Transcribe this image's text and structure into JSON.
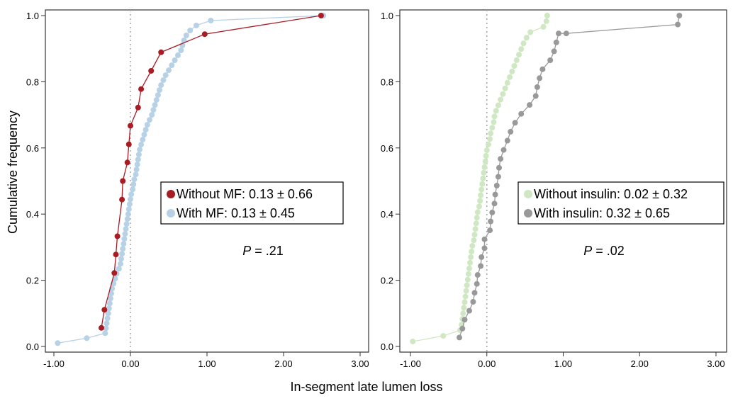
{
  "figure": {
    "ylabel": "Cumulative frequency",
    "xlabel": "In-segment late lumen loss"
  },
  "chart_data": [
    {
      "type": "line",
      "panel": "left",
      "xlim": [
        -1.0,
        3.0
      ],
      "ylim": [
        0.0,
        1.0
      ],
      "x_ticks": [
        "-1.00",
        "0.00",
        "1.00",
        "2.00",
        "3.00"
      ],
      "y_ticks": [
        "0.0",
        "0.2",
        "0.4",
        "0.6",
        "0.8",
        "1.0"
      ],
      "reference_line_x": 0.0,
      "grid": false,
      "legend_position": "center-right",
      "annotation": {
        "prefix": "P",
        "text": " = .21"
      },
      "series": [
        {
          "name": "Without MF: 0.13 ± 0.66",
          "color": "#a81c24",
          "points": [
            [
              -0.38,
              0.056
            ],
            [
              -0.34,
              0.111
            ],
            [
              -0.21,
              0.222
            ],
            [
              -0.19,
              0.278
            ],
            [
              -0.17,
              0.333
            ],
            [
              -0.11,
              0.444
            ],
            [
              -0.1,
              0.5
            ],
            [
              -0.04,
              0.556
            ],
            [
              -0.02,
              0.611
            ],
            [
              0.0,
              0.667
            ],
            [
              0.1,
              0.722
            ],
            [
              0.14,
              0.778
            ],
            [
              0.27,
              0.833
            ],
            [
              0.4,
              0.889
            ],
            [
              0.97,
              0.944
            ],
            [
              2.49,
              1.0
            ]
          ]
        },
        {
          "name": "With MF: 0.13 ± 0.45",
          "color": "#b7d1e6",
          "points": [
            [
              -0.95,
              0.01
            ],
            [
              -0.57,
              0.025
            ],
            [
              -0.33,
              0.04
            ],
            [
              -0.32,
              0.055
            ],
            [
              -0.31,
              0.07
            ],
            [
              -0.3,
              0.085
            ],
            [
              -0.29,
              0.1
            ],
            [
              -0.28,
              0.115
            ],
            [
              -0.27,
              0.13
            ],
            [
              -0.26,
              0.145
            ],
            [
              -0.25,
              0.16
            ],
            [
              -0.24,
              0.175
            ],
            [
              -0.22,
              0.19
            ],
            [
              -0.2,
              0.205
            ],
            [
              -0.18,
              0.22
            ],
            [
              -0.15,
              0.235
            ],
            [
              -0.13,
              0.25
            ],
            [
              -0.12,
              0.265
            ],
            [
              -0.11,
              0.28
            ],
            [
              -0.1,
              0.295
            ],
            [
              -0.09,
              0.31
            ],
            [
              -0.08,
              0.325
            ],
            [
              -0.07,
              0.34
            ],
            [
              -0.06,
              0.355
            ],
            [
              -0.05,
              0.37
            ],
            [
              -0.04,
              0.385
            ],
            [
              -0.03,
              0.4
            ],
            [
              -0.02,
              0.415
            ],
            [
              -0.01,
              0.43
            ],
            [
              0.0,
              0.445
            ],
            [
              0.01,
              0.46
            ],
            [
              0.03,
              0.475
            ],
            [
              0.04,
              0.49
            ],
            [
              0.05,
              0.505
            ],
            [
              0.07,
              0.52
            ],
            [
              0.08,
              0.535
            ],
            [
              0.09,
              0.55
            ],
            [
              0.1,
              0.565
            ],
            [
              0.11,
              0.58
            ],
            [
              0.12,
              0.595
            ],
            [
              0.14,
              0.61
            ],
            [
              0.16,
              0.625
            ],
            [
              0.18,
              0.64
            ],
            [
              0.2,
              0.655
            ],
            [
              0.22,
              0.67
            ],
            [
              0.25,
              0.685
            ],
            [
              0.28,
              0.7
            ],
            [
              0.3,
              0.715
            ],
            [
              0.32,
              0.73
            ],
            [
              0.34,
              0.745
            ],
            [
              0.36,
              0.76
            ],
            [
              0.38,
              0.775
            ],
            [
              0.4,
              0.79
            ],
            [
              0.43,
              0.805
            ],
            [
              0.46,
              0.82
            ],
            [
              0.5,
              0.835
            ],
            [
              0.54,
              0.85
            ],
            [
              0.58,
              0.865
            ],
            [
              0.62,
              0.88
            ],
            [
              0.66,
              0.895
            ],
            [
              0.68,
              0.91
            ],
            [
              0.7,
              0.925
            ],
            [
              0.73,
              0.94
            ],
            [
              0.78,
              0.955
            ],
            [
              0.86,
              0.97
            ],
            [
              1.05,
              0.985
            ],
            [
              2.52,
              1.0
            ]
          ]
        }
      ]
    },
    {
      "type": "line",
      "panel": "right",
      "xlim": [
        -1.0,
        3.0
      ],
      "ylim": [
        0.0,
        1.0
      ],
      "x_ticks": [
        "-1.00",
        "0.00",
        "1.00",
        "2.00",
        "3.00"
      ],
      "y_ticks": [
        "0.0",
        "0.2",
        "0.4",
        "0.6",
        "0.8",
        "1.0"
      ],
      "reference_line_x": 0.0,
      "grid": false,
      "legend_position": "center-right",
      "annotation": {
        "prefix": "P",
        "text": " =  .02"
      },
      "series": [
        {
          "name": "Without insulin: 0.02 ± 0.32",
          "color": "#cfe8c3",
          "points": [
            [
              -0.97,
              0.015
            ],
            [
              -0.57,
              0.032
            ],
            [
              -0.35,
              0.049
            ],
            [
              -0.33,
              0.066
            ],
            [
              -0.32,
              0.083
            ],
            [
              -0.31,
              0.1
            ],
            [
              -0.3,
              0.117
            ],
            [
              -0.29,
              0.134
            ],
            [
              -0.28,
              0.151
            ],
            [
              -0.27,
              0.168
            ],
            [
              -0.26,
              0.185
            ],
            [
              -0.25,
              0.202
            ],
            [
              -0.24,
              0.219
            ],
            [
              -0.23,
              0.236
            ],
            [
              -0.22,
              0.253
            ],
            [
              -0.21,
              0.27
            ],
            [
              -0.2,
              0.287
            ],
            [
              -0.19,
              0.304
            ],
            [
              -0.17,
              0.321
            ],
            [
              -0.16,
              0.338
            ],
            [
              -0.15,
              0.355
            ],
            [
              -0.14,
              0.372
            ],
            [
              -0.13,
              0.389
            ],
            [
              -0.12,
              0.406
            ],
            [
              -0.1,
              0.423
            ],
            [
              -0.09,
              0.44
            ],
            [
              -0.08,
              0.457
            ],
            [
              -0.07,
              0.474
            ],
            [
              -0.06,
              0.491
            ],
            [
              -0.05,
              0.508
            ],
            [
              -0.04,
              0.525
            ],
            [
              -0.03,
              0.542
            ],
            [
              -0.02,
              0.559
            ],
            [
              -0.01,
              0.576
            ],
            [
              0.0,
              0.593
            ],
            [
              0.02,
              0.61
            ],
            [
              0.04,
              0.627
            ],
            [
              0.05,
              0.644
            ],
            [
              0.07,
              0.661
            ],
            [
              0.09,
              0.678
            ],
            [
              0.1,
              0.695
            ],
            [
              0.12,
              0.712
            ],
            [
              0.15,
              0.729
            ],
            [
              0.18,
              0.746
            ],
            [
              0.21,
              0.763
            ],
            [
              0.24,
              0.78
            ],
            [
              0.27,
              0.797
            ],
            [
              0.3,
              0.814
            ],
            [
              0.33,
              0.831
            ],
            [
              0.36,
              0.848
            ],
            [
              0.39,
              0.865
            ],
            [
              0.42,
              0.882
            ],
            [
              0.45,
              0.899
            ],
            [
              0.48,
              0.916
            ],
            [
              0.52,
              0.933
            ],
            [
              0.57,
              0.95
            ],
            [
              0.74,
              0.966
            ],
            [
              0.78,
              0.983
            ],
            [
              0.79,
              1.0
            ]
          ]
        },
        {
          "name": "With insulin: 0.32 ± 0.65",
          "color": "#999999",
          "points": [
            [
              -0.36,
              0.027
            ],
            [
              -0.32,
              0.054
            ],
            [
              -0.29,
              0.081
            ],
            [
              -0.23,
              0.108
            ],
            [
              -0.18,
              0.135
            ],
            [
              -0.16,
              0.162
            ],
            [
              -0.13,
              0.189
            ],
            [
              -0.12,
              0.216
            ],
            [
              -0.08,
              0.243
            ],
            [
              -0.07,
              0.27
            ],
            [
              -0.03,
              0.297
            ],
            [
              -0.03,
              0.324
            ],
            [
              0.04,
              0.351
            ],
            [
              0.05,
              0.378
            ],
            [
              0.07,
              0.405
            ],
            [
              0.1,
              0.432
            ],
            [
              0.11,
              0.459
            ],
            [
              0.13,
              0.486
            ],
            [
              0.15,
              0.513
            ],
            [
              0.16,
              0.54
            ],
            [
              0.18,
              0.567
            ],
            [
              0.22,
              0.594
            ],
            [
              0.27,
              0.622
            ],
            [
              0.31,
              0.649
            ],
            [
              0.37,
              0.676
            ],
            [
              0.45,
              0.703
            ],
            [
              0.56,
              0.73
            ],
            [
              0.64,
              0.757
            ],
            [
              0.66,
              0.784
            ],
            [
              0.69,
              0.811
            ],
            [
              0.73,
              0.838
            ],
            [
              0.83,
              0.865
            ],
            [
              0.88,
              0.892
            ],
            [
              0.91,
              0.919
            ],
            [
              0.94,
              0.946
            ],
            [
              1.04,
              0.946
            ],
            [
              2.5,
              0.973
            ],
            [
              2.52,
              1.0
            ]
          ]
        }
      ]
    }
  ]
}
